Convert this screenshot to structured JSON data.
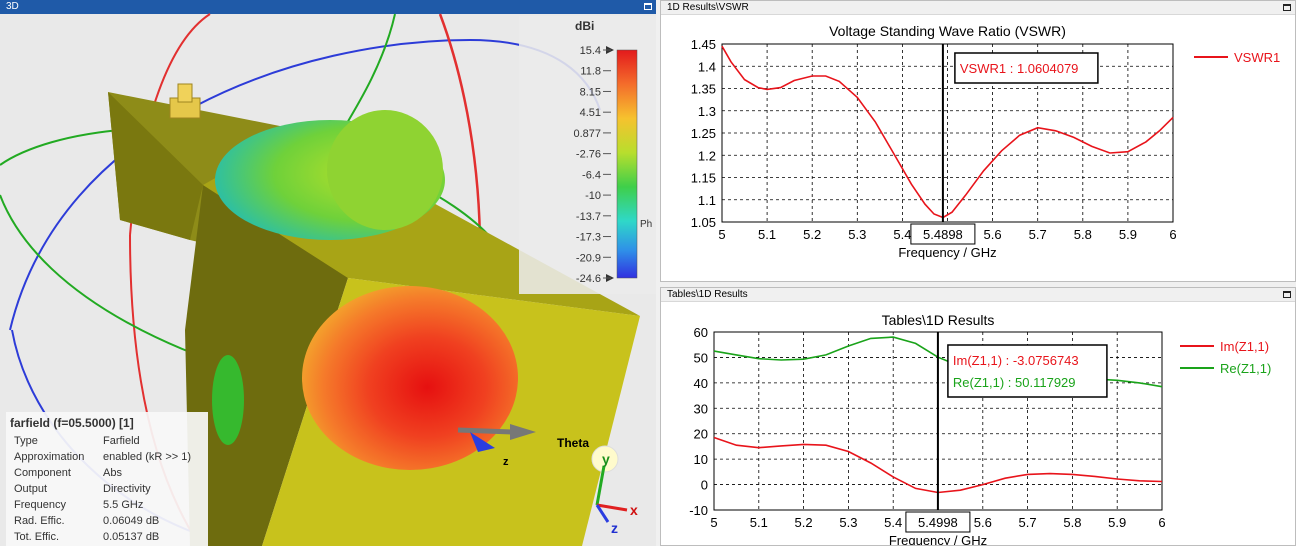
{
  "panels": {
    "view3d_title": "3D",
    "vswr_title": "1D Results\\VSWR",
    "tables_title": "Tables\\1D Results"
  },
  "view3d": {
    "colorbar_unit": "dBi",
    "colorbar_ticks": [
      "15.4",
      "11.8",
      "8.15",
      "4.51",
      "0.877",
      "-2.76",
      "-6.4",
      "-10",
      "-13.7",
      "-17.3",
      "-20.9",
      "-24.6"
    ],
    "colorbar_side_label": "Ph",
    "axis_labels": {
      "theta": "Theta",
      "z_small": "z",
      "y": "y",
      "x": "x",
      "z": "z"
    },
    "info": {
      "heading": "farfield (f=05.5000) [1]",
      "rows": [
        {
          "key": "Type",
          "value": "Farfield"
        },
        {
          "key": "Approximation",
          "value": "enabled (kR >> 1)"
        },
        {
          "key": "Component",
          "value": "Abs"
        },
        {
          "key": "Output",
          "value": "Directivity"
        },
        {
          "key": "Frequency",
          "value": "5.5 GHz"
        },
        {
          "key": "Rad. Effic.",
          "value": "0.06049 dB"
        },
        {
          "key": "Tot. Effic.",
          "value": "0.05137 dB"
        }
      ]
    }
  },
  "chart_data": [
    {
      "type": "line",
      "title": "Voltage Standing Wave Ratio (VSWR)",
      "xlabel": "Frequency / GHz",
      "ylabel": "",
      "xlim": [
        5,
        6
      ],
      "ylim": [
        1.05,
        1.45
      ],
      "xticks": [
        "5",
        "5.1",
        "5.2",
        "5.3",
        "5.4",
        "5.5",
        "5.6",
        "5.7",
        "5.8",
        "5.9",
        "6"
      ],
      "yticks": [
        "1.05",
        "1.1",
        "1.15",
        "1.2",
        "1.25",
        "1.3",
        "1.35",
        "1.4",
        "1.45"
      ],
      "grid": true,
      "legend": "right",
      "marker_x": 5.4898,
      "marker_label": "5.4898",
      "annotations": [
        "VSWR1 : 1.0604079"
      ],
      "series": [
        {
          "name": "VSWR1",
          "color": "#e8141b",
          "x": [
            5,
            5.02,
            5.05,
            5.08,
            5.1,
            5.13,
            5.16,
            5.2,
            5.23,
            5.26,
            5.3,
            5.34,
            5.38,
            5.42,
            5.45,
            5.47,
            5.49,
            5.51,
            5.54,
            5.58,
            5.62,
            5.66,
            5.7,
            5.74,
            5.78,
            5.82,
            5.86,
            5.9,
            5.94,
            5.97,
            6
          ],
          "y": [
            1.445,
            1.41,
            1.37,
            1.352,
            1.348,
            1.352,
            1.368,
            1.378,
            1.378,
            1.366,
            1.33,
            1.275,
            1.205,
            1.135,
            1.09,
            1.068,
            1.06,
            1.072,
            1.11,
            1.165,
            1.21,
            1.245,
            1.262,
            1.255,
            1.24,
            1.22,
            1.205,
            1.208,
            1.23,
            1.255,
            1.285
          ]
        }
      ]
    },
    {
      "type": "line",
      "title": "Tables\\1D Results",
      "xlabel": "Frequency / GHz",
      "ylabel": "",
      "xlim": [
        5,
        6
      ],
      "ylim": [
        -10,
        60
      ],
      "xticks": [
        "5",
        "5.1",
        "5.2",
        "5.3",
        "5.4",
        "5.5",
        "5.6",
        "5.7",
        "5.8",
        "5.9",
        "6"
      ],
      "yticks": [
        "-10",
        "0",
        "10",
        "20",
        "30",
        "40",
        "50",
        "60"
      ],
      "grid": true,
      "legend": "right",
      "marker_x": 5.4998,
      "marker_label": "5.4998",
      "annotations": [
        "Im(Z1,1) : -3.0756743",
        "Re(Z1,1) : 50.117929"
      ],
      "series": [
        {
          "name": "Im(Z1,1)",
          "color": "#e8141b",
          "x": [
            5,
            5.05,
            5.1,
            5.15,
            5.2,
            5.25,
            5.3,
            5.35,
            5.4,
            5.45,
            5.5,
            5.55,
            5.6,
            5.65,
            5.7,
            5.75,
            5.8,
            5.85,
            5.9,
            5.95,
            6
          ],
          "y": [
            18.5,
            15.5,
            14.5,
            15.2,
            15.8,
            15.5,
            13,
            8.5,
            3,
            -1.5,
            -3.1,
            -2.2,
            0,
            2.5,
            4,
            4.3,
            4,
            3.2,
            2.2,
            1.5,
            1.2
          ]
        },
        {
          "name": "Re(Z1,1)",
          "color": "#1aa31a",
          "x": [
            5,
            5.05,
            5.1,
            5.15,
            5.2,
            5.25,
            5.3,
            5.35,
            5.4,
            5.45,
            5.5,
            5.55,
            5.6,
            5.65,
            5.7,
            5.75,
            5.8,
            5.85,
            5.9,
            5.95,
            6
          ],
          "y": [
            52.5,
            51,
            49.5,
            49,
            49.3,
            51,
            54.5,
            57.5,
            58,
            55.5,
            50.1,
            46.5,
            44.5,
            43.5,
            43,
            42.5,
            42,
            41.5,
            41,
            40,
            38.5
          ]
        }
      ]
    }
  ]
}
